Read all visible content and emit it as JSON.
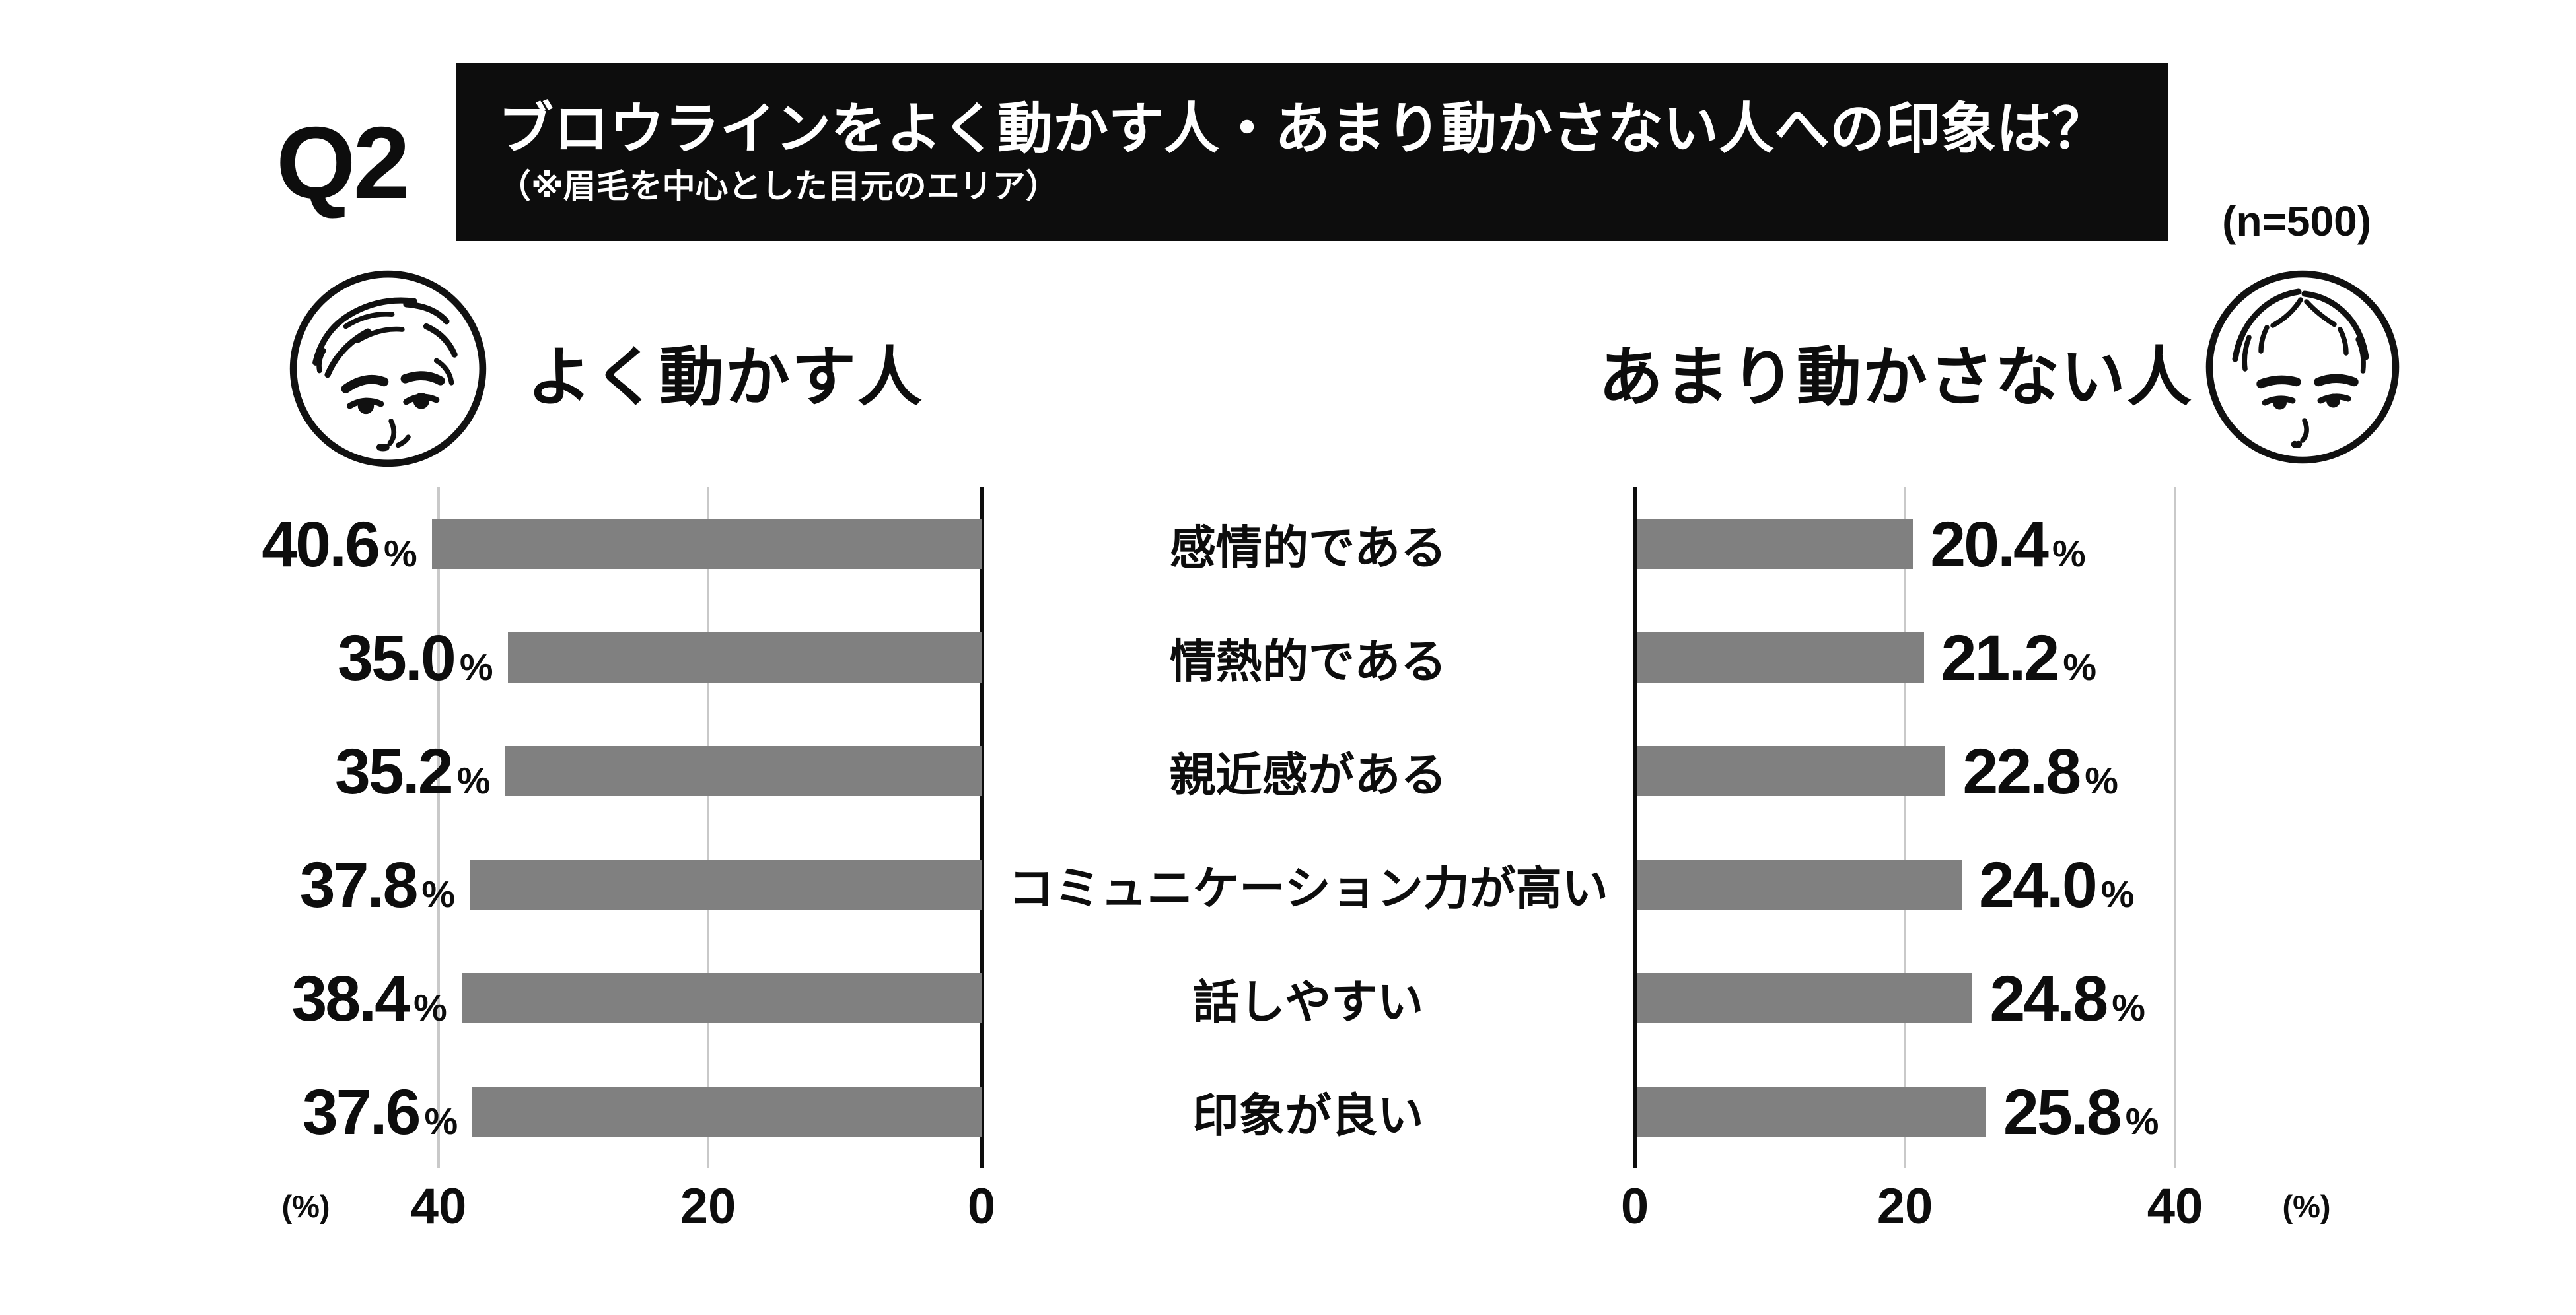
{
  "header": {
    "question_no": "Q2",
    "title": "ブロウラインをよく動かす人・あまり動かさない人への印象は？",
    "subtitle": "（※眉毛を中心とした目元のエリア）",
    "sample_size_label": "(n=500)"
  },
  "panels": {
    "left": {
      "heading": "よく動かす人",
      "icon": "face-expressive-icon"
    },
    "right": {
      "heading": "あまり動かさない人",
      "icon": "face-calm-icon"
    }
  },
  "axis": {
    "left": {
      "unit": "(%)",
      "t40": "40",
      "t20": "20",
      "t0": "0"
    },
    "right": {
      "t0": "0",
      "t20": "20",
      "t40": "40",
      "unit": "(%)"
    }
  },
  "style": {
    "bar_color": "#808080",
    "grid_color": "#c9c9c9",
    "axis_color": "#0d0d0d",
    "title_bg": "#0d0d0d"
  },
  "chart_data": {
    "type": "bar",
    "orientation": "horizontal",
    "title": "ブロウラインをよく動かす人・あまり動かさない人への印象は？",
    "subtitle": "（※眉毛を中心とした目元のエリア）",
    "sample_size": 500,
    "unit": "%",
    "categories": [
      "感情的である",
      "情熱的である",
      "親近感がある",
      "コミュニケーション力が高い",
      "話しやすい",
      "印象が良い"
    ],
    "series": [
      {
        "name": "よく動かす人",
        "side": "left",
        "values": [
          40.6,
          35.0,
          35.2,
          37.8,
          38.4,
          37.6
        ]
      },
      {
        "name": "あまり動かさない人",
        "side": "right",
        "values": [
          20.4,
          21.2,
          22.8,
          24.0,
          24.8,
          25.8
        ]
      }
    ],
    "xlim": [
      0,
      44
    ],
    "ticks": [
      0,
      20,
      40
    ],
    "grid": true,
    "legend_position": "none",
    "value_labels": "outside"
  }
}
